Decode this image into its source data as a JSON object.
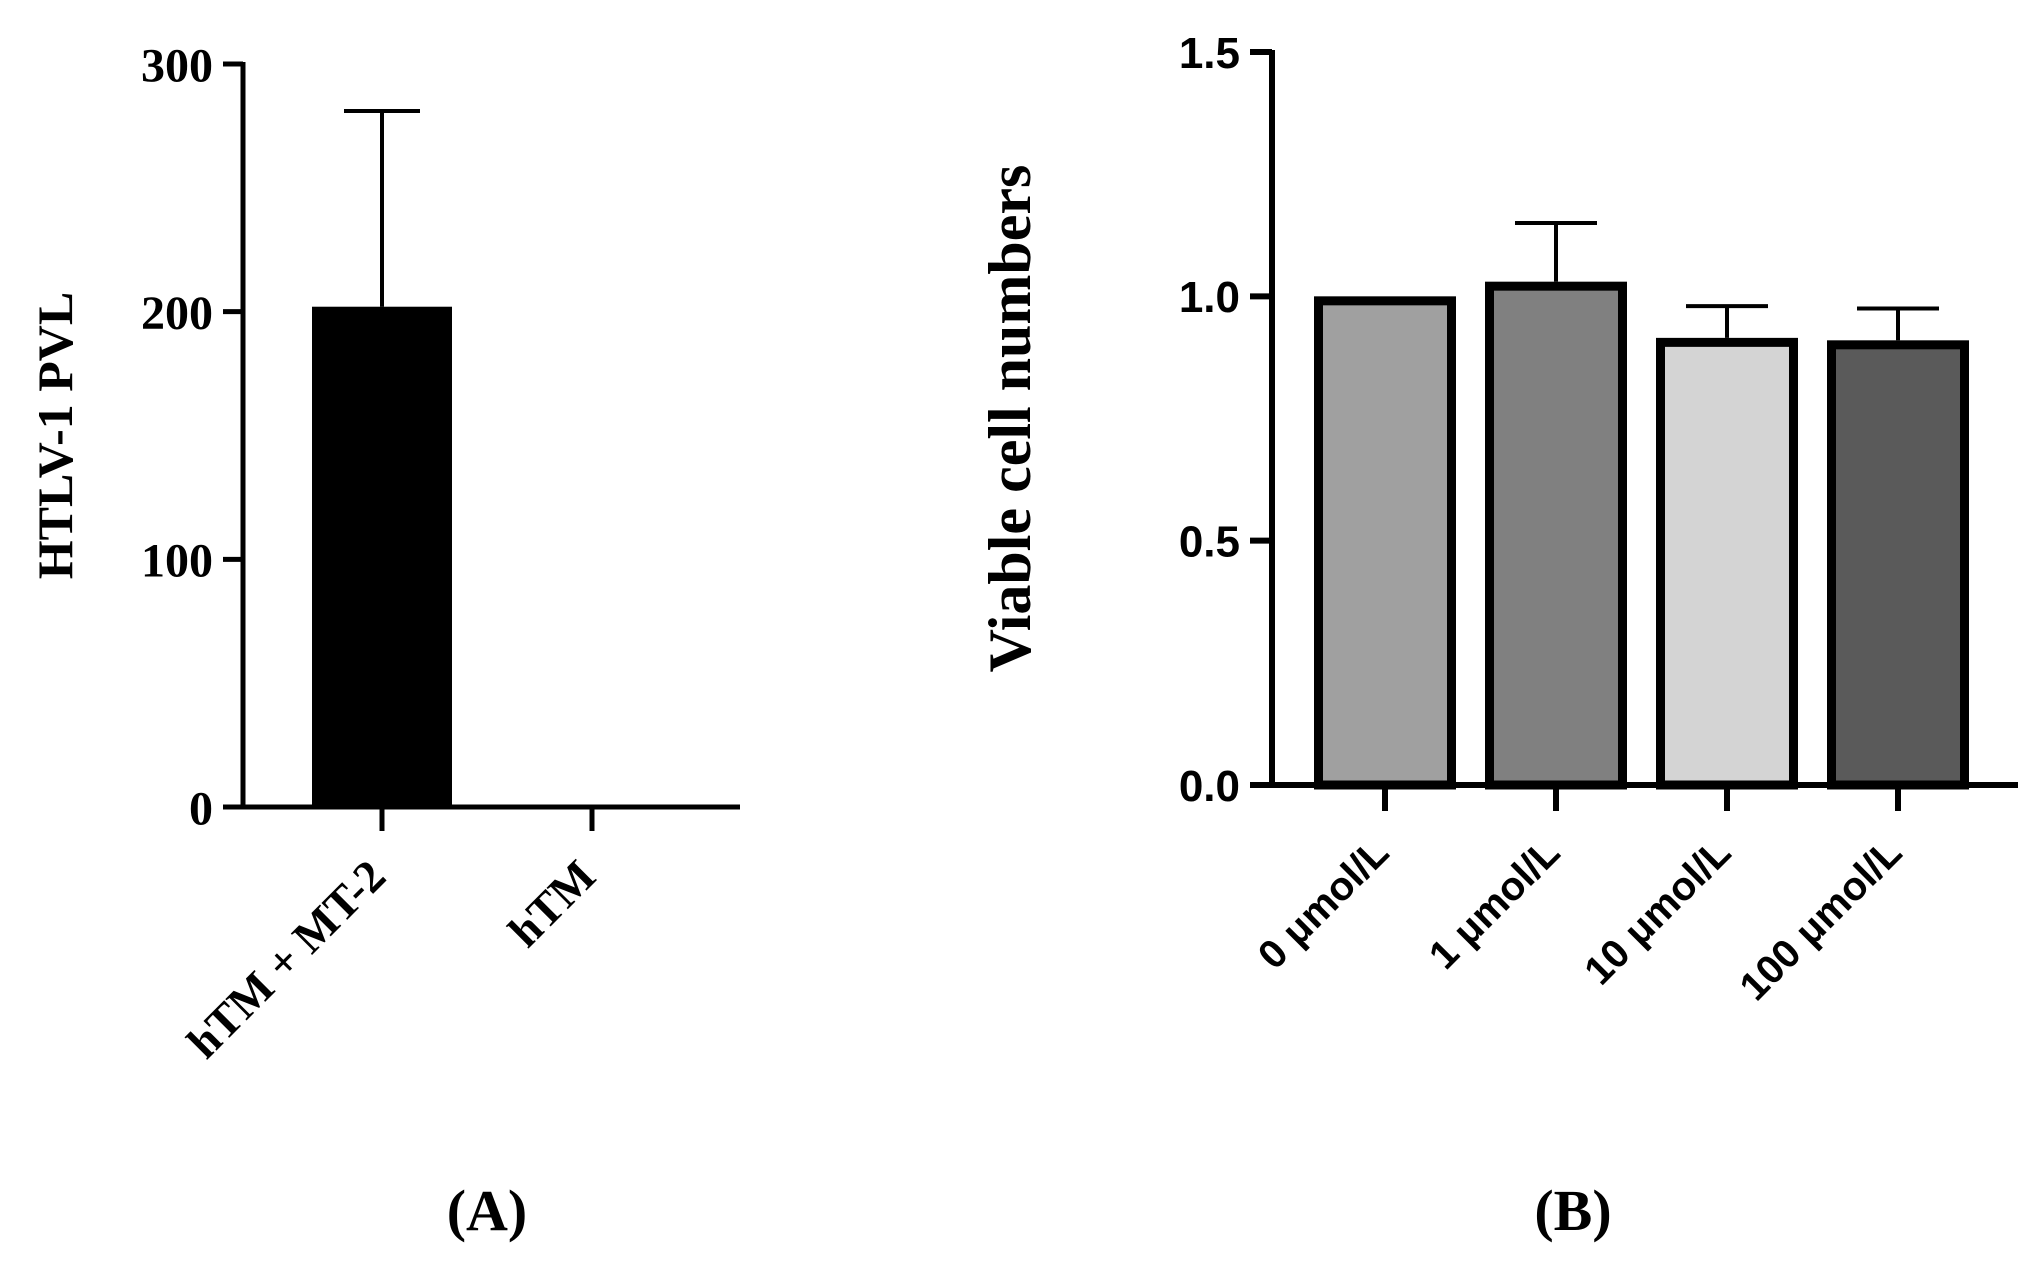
{
  "chart_data": [
    {
      "id": "A",
      "type": "bar",
      "title": "",
      "panel_label": "(A)",
      "xlabel": "",
      "ylabel": "HTLV-1 PVL",
      "categories": [
        "hTM + MT-2",
        "hTM"
      ],
      "values": [
        202,
        0
      ],
      "error_upper": [
        79,
        0
      ],
      "ylim": [
        0,
        300
      ],
      "yticks": [
        0,
        100,
        200,
        300
      ],
      "ytick_labels": [
        "0",
        "100",
        "200",
        "300"
      ],
      "colors": [
        "#000000",
        "#000000"
      ],
      "grid": false
    },
    {
      "id": "B",
      "type": "bar",
      "title": "",
      "panel_label": "(B)",
      "xlabel": "",
      "ylabel": "Viable cell numbers",
      "categories": [
        "0 μmol/L",
        "1 μmol/L",
        "10 μmol/L",
        "100 μmol/L"
      ],
      "values": [
        1.0,
        1.03,
        0.915,
        0.91
      ],
      "error_upper": [
        0,
        0.12,
        0.065,
        0.065
      ],
      "ylim": [
        0,
        1.5
      ],
      "yticks": [
        0,
        0.5,
        1.0,
        1.5
      ],
      "ytick_labels": [
        "0.0",
        "0.5",
        "1.0",
        "1.5"
      ],
      "colors": [
        "#a0a0a0",
        "#808080",
        "#d4d4d4",
        "#5a5a5a"
      ],
      "grid": false
    }
  ]
}
